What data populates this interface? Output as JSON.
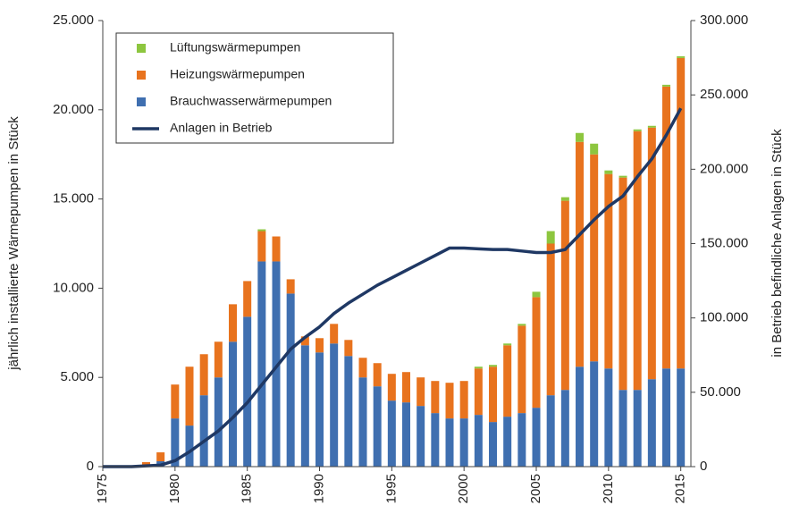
{
  "chart_data": {
    "type": "bar",
    "stacked": true,
    "y_axis_label": "jährlich installierte Wärmepumpen in Stück",
    "y2_axis_label": "in Betrieb befindliche  Anlagen in Stück",
    "x": [
      1975,
      1976,
      1977,
      1978,
      1979,
      1980,
      1981,
      1982,
      1983,
      1984,
      1985,
      1986,
      1987,
      1988,
      1989,
      1990,
      1991,
      1992,
      1993,
      1994,
      1995,
      1996,
      1997,
      1998,
      1999,
      2000,
      2001,
      2002,
      2003,
      2004,
      2005,
      2006,
      2007,
      2008,
      2009,
      2010,
      2011,
      2012,
      2013,
      2014,
      2015
    ],
    "xlim": [
      1975,
      2015.7
    ],
    "xticks": [
      1975,
      1980,
      1985,
      1990,
      1995,
      2000,
      2005,
      2010,
      2015
    ],
    "ylim": [
      0,
      25000
    ],
    "yticks": [
      0,
      {
        "value": 5000,
        "label": "5.000"
      },
      {
        "value": 10000,
        "label": "10.000"
      },
      {
        "value": 15000,
        "label": "15.000"
      },
      {
        "value": 20000,
        "label": "20.000"
      },
      {
        "value": 25000,
        "label": "25.000"
      }
    ],
    "y2lim": [
      0,
      300000
    ],
    "y2ticks": [
      0,
      {
        "value": 50000,
        "label": "50.000"
      },
      {
        "value": 100000,
        "label": "100.000"
      },
      {
        "value": 150000,
        "label": "150.000"
      },
      {
        "value": 200000,
        "label": "200.000"
      },
      {
        "value": 250000,
        "label": "250.000"
      },
      {
        "value": 300000,
        "label": "300.000"
      }
    ],
    "legend": "upper left",
    "series": [
      {
        "name": "Brauchwasserwärmepumpen",
        "color": "#3f6fb0",
        "type": "bar",
        "values": [
          0,
          0,
          0,
          0,
          300,
          2700,
          2300,
          4000,
          5000,
          7000,
          8400,
          11500,
          11500,
          9700,
          6800,
          6400,
          6900,
          6200,
          5000,
          4500,
          3700,
          3600,
          3400,
          3000,
          2700,
          2700,
          2900,
          2500,
          2800,
          3000,
          3300,
          4000,
          4300,
          5600,
          5900,
          5500,
          4300,
          4300,
          4900,
          5500,
          5500
        ]
      },
      {
        "name": "Heizungswärmepumpen",
        "color": "#e8731e",
        "type": "bar",
        "values": [
          0,
          0,
          0,
          250,
          500,
          1900,
          3300,
          2300,
          2000,
          2100,
          2000,
          1700,
          1400,
          800,
          500,
          800,
          1100,
          900,
          1100,
          1300,
          1500,
          1700,
          1600,
          1800,
          2000,
          2100,
          2600,
          3100,
          4000,
          4900,
          6200,
          8500,
          10600,
          12600,
          11600,
          10900,
          11900,
          14500,
          14100,
          15800,
          17400
        ]
      },
      {
        "name": "Lüftungswärmepumpen",
        "color": "#8dc63f",
        "type": "bar",
        "values": [
          0,
          0,
          0,
          0,
          0,
          0,
          0,
          0,
          0,
          0,
          0,
          100,
          0,
          0,
          0,
          0,
          0,
          0,
          0,
          0,
          0,
          0,
          0,
          0,
          0,
          0,
          100,
          100,
          100,
          100,
          300,
          700,
          200,
          500,
          600,
          200,
          100,
          100,
          100,
          100,
          100
        ]
      },
      {
        "name": "Anlagen in Betrieb",
        "color": "#1f3864",
        "type": "line",
        "axis": "y2",
        "values": [
          0,
          0,
          0,
          500,
          1000,
          4000,
          10000,
          17000,
          24000,
          33000,
          43000,
          55000,
          67000,
          79000,
          87000,
          94000,
          103000,
          110000,
          116000,
          122000,
          127000,
          132000,
          137000,
          142000,
          147000,
          147000,
          146500,
          146000,
          146000,
          145000,
          144000,
          144000,
          146000,
          156000,
          166000,
          175000,
          182000,
          195000,
          207000,
          223000,
          241000
        ]
      }
    ]
  }
}
